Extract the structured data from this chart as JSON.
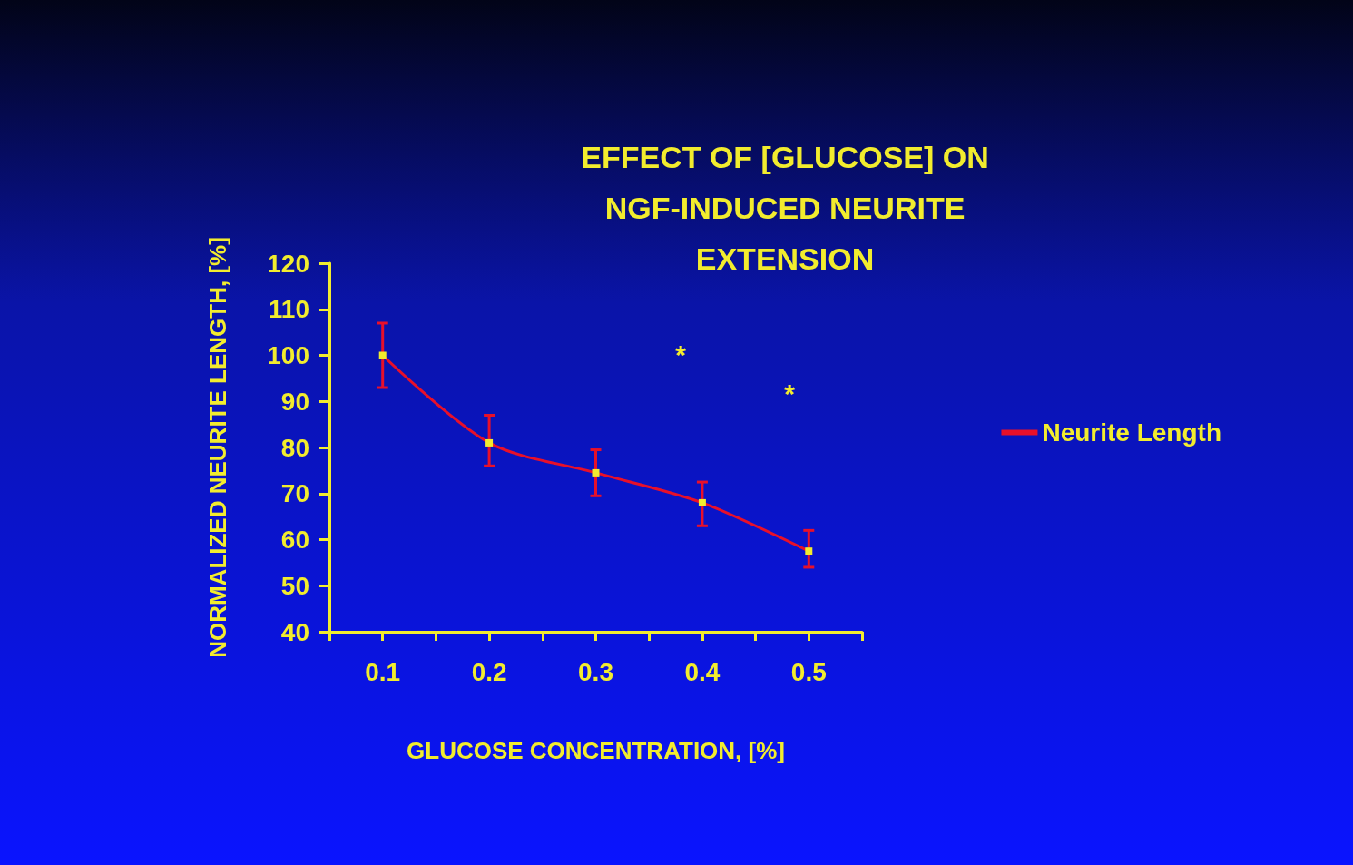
{
  "chart_data": {
    "type": "line",
    "title": "EFFECT OF [GLUCOSE] ON\nNGF-INDUCED NEURITE\nEXTENSION",
    "xlabel": "GLUCOSE CONCENTRATION, [%]",
    "ylabel": "NORMALIZED NEURITE LENGTH, [%]",
    "x": [
      0.1,
      0.2,
      0.3,
      0.4,
      0.5
    ],
    "series": [
      {
        "name": "Neurite Length",
        "color": "#e8102a",
        "values": [
          100,
          81,
          74.5,
          68,
          57.5
        ],
        "errors": [
          [
            93,
            107
          ],
          [
            76,
            87
          ],
          [
            69.5,
            79.5
          ],
          [
            63,
            72.5
          ],
          [
            54,
            62
          ]
        ]
      }
    ],
    "xlim": [
      0.05,
      0.55
    ],
    "xticks": [
      {
        "value": 0.05,
        "label": null
      },
      0.1,
      {
        "value": 0.15,
        "label": null
      },
      0.2,
      {
        "value": 0.25,
        "label": null
      },
      0.3,
      {
        "value": 0.35,
        "label": null
      },
      0.4,
      {
        "value": 0.45,
        "label": null
      },
      0.5,
      {
        "value": 0.55,
        "label": null
      }
    ],
    "ylim": [
      40,
      120
    ],
    "yticks": [
      40,
      50,
      60,
      70,
      80,
      90,
      100,
      110,
      120
    ],
    "annotations": [
      "*",
      "*"
    ],
    "marker": "square",
    "line_style": "solid",
    "grid": false,
    "legend": "right"
  }
}
